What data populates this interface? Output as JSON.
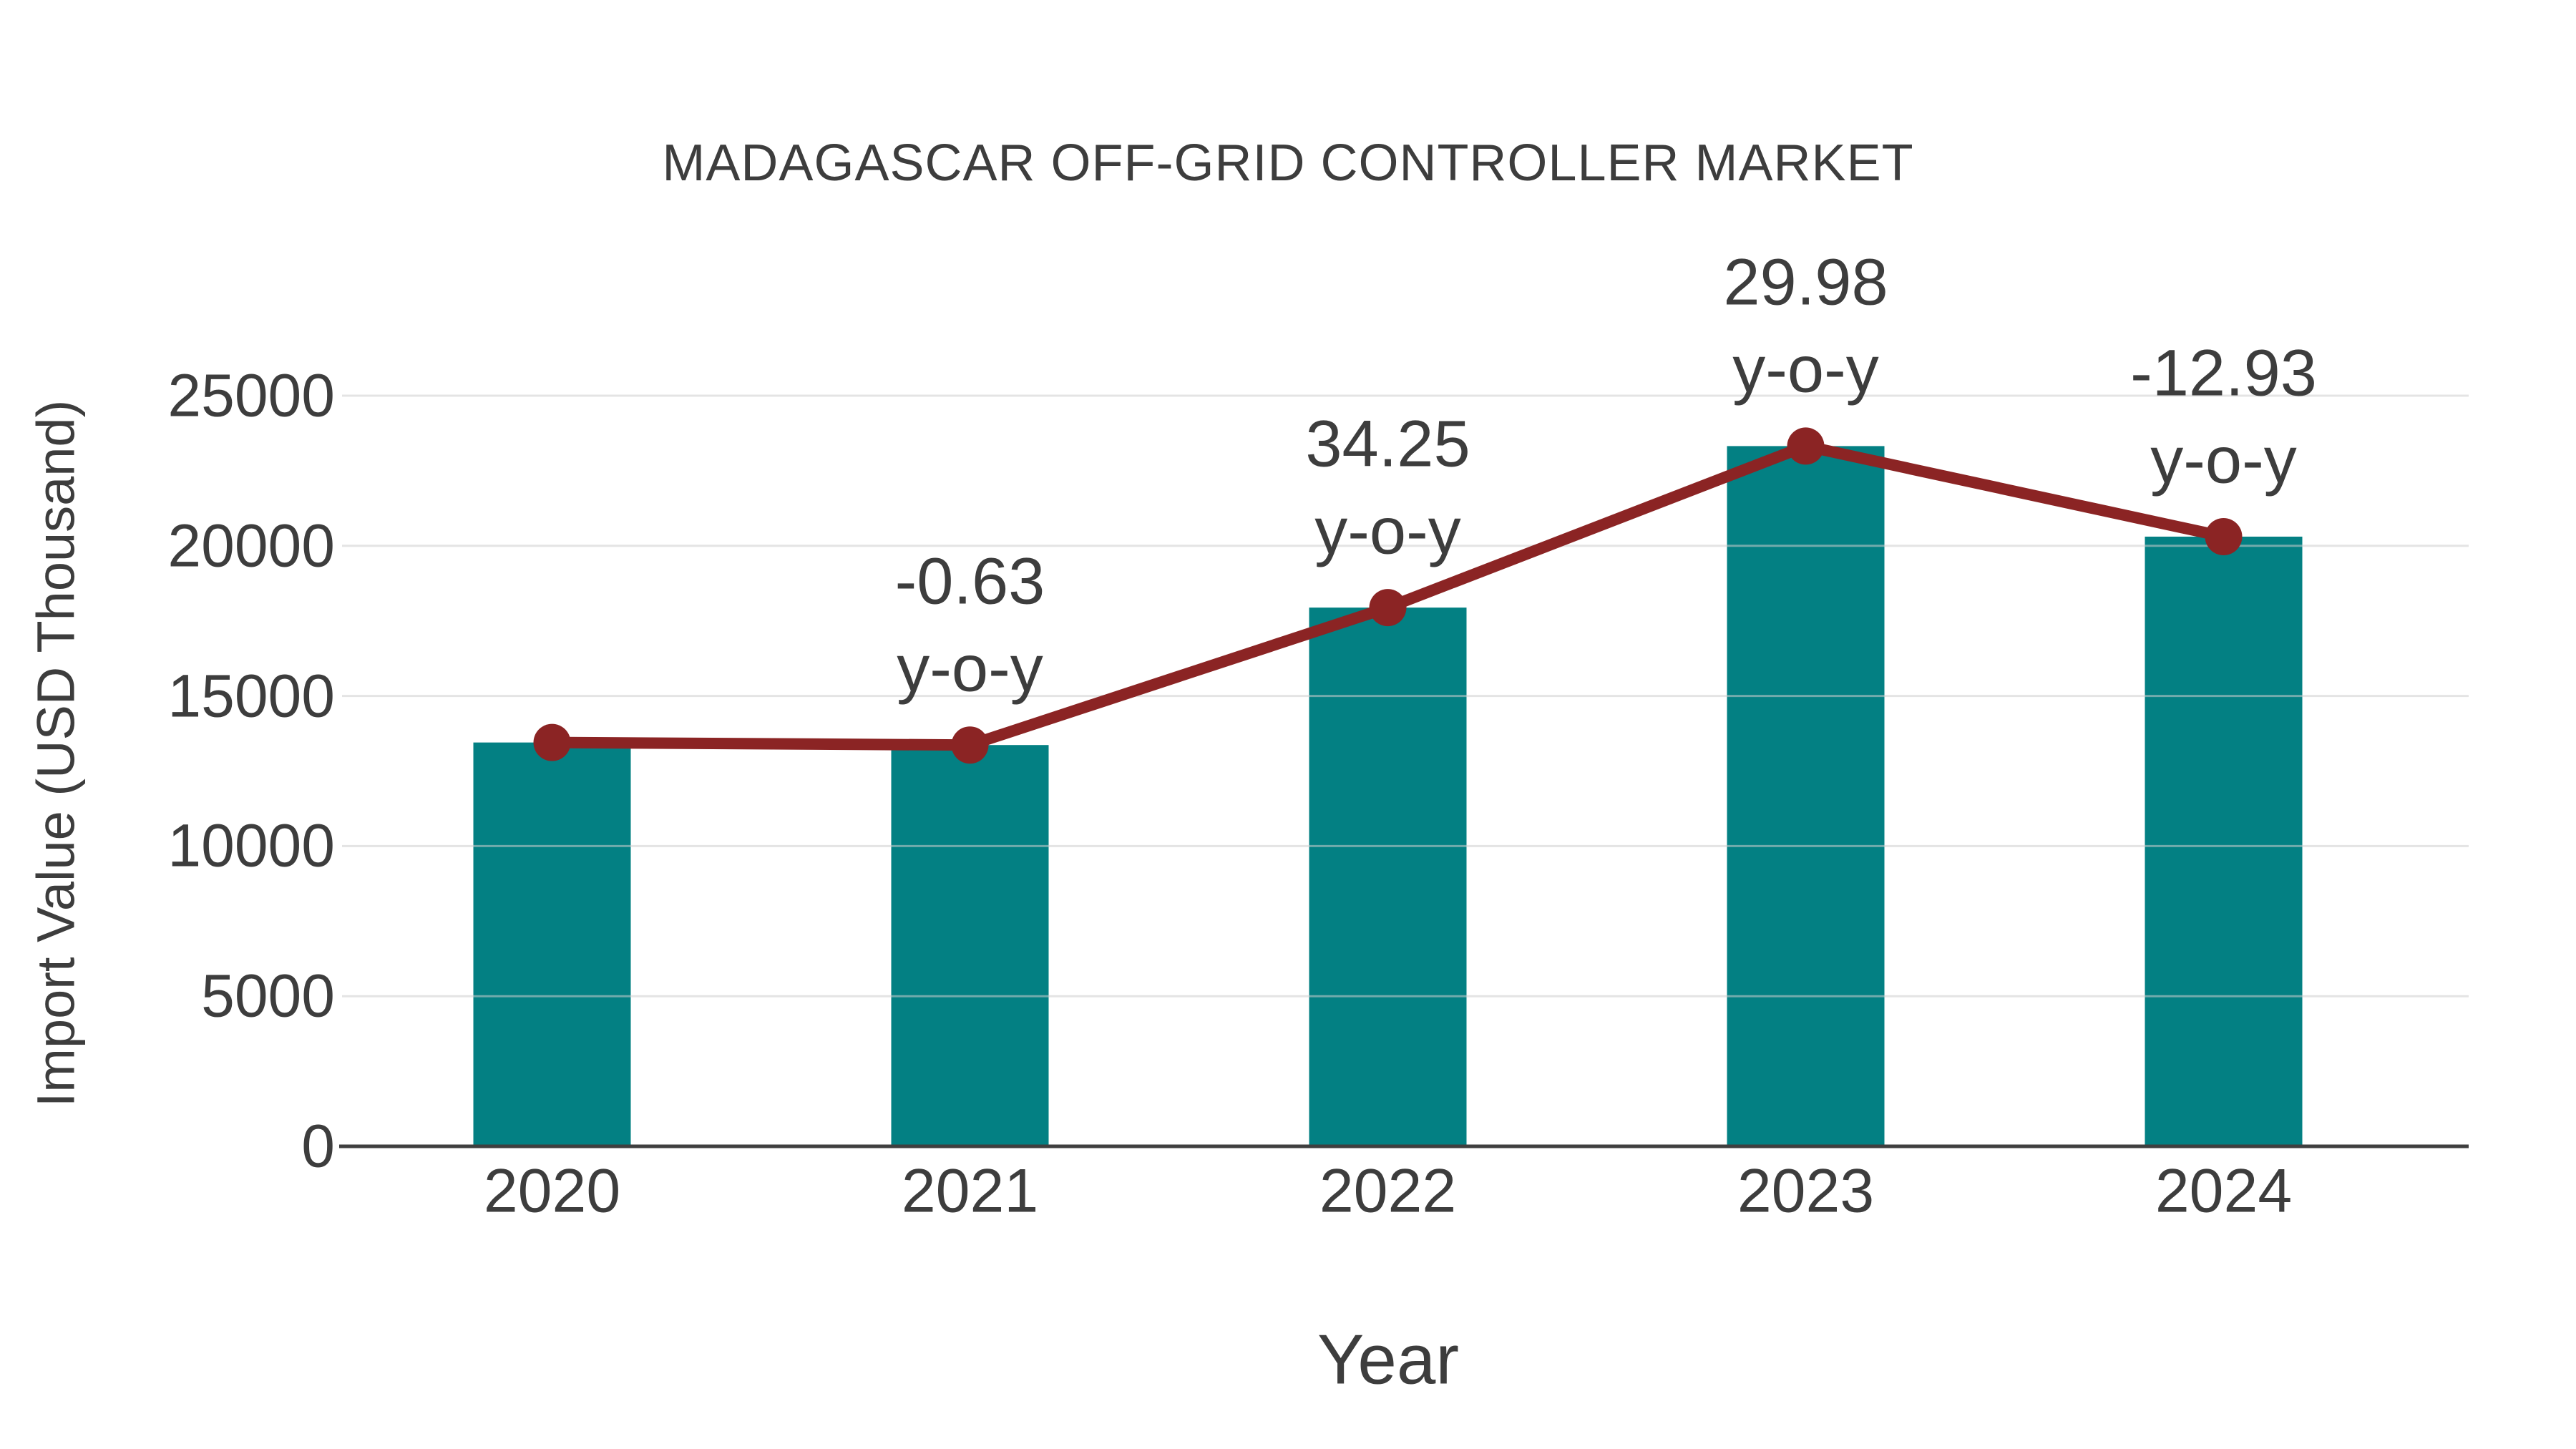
{
  "figure": {
    "title": "MADAGASCAR OFF-GRID CONTROLLER MARKET",
    "x_axis_title": "Year",
    "y_axis_title": "Import Value (USD Thousand)"
  },
  "chart_data": {
    "type": "bar",
    "title": "MADAGASCAR OFF-GRID CONTROLLER MARKET",
    "xlabel": "Year",
    "ylabel": "Import Value (USD Thousand)",
    "categories": [
      "2020",
      "2021",
      "2022",
      "2023",
      "2024"
    ],
    "series": [
      {
        "name": "import-value-bars",
        "type": "bar",
        "color": "#038083",
        "values": [
          13450,
          13365,
          17943,
          23322,
          20306
        ]
      },
      {
        "name": "import-value-trend",
        "type": "line",
        "color": "#8b2424",
        "values": [
          13450,
          13365,
          17943,
          23322,
          20306
        ]
      }
    ],
    "annotations": [
      {
        "category": "2021",
        "value": "-0.63",
        "suffix": "y-o-y"
      },
      {
        "category": "2022",
        "value": "34.25",
        "suffix": "y-o-y"
      },
      {
        "category": "2023",
        "value": "29.98",
        "suffix": "y-o-y"
      },
      {
        "category": "2024",
        "value": "-12.93",
        "suffix": "y-o-y"
      }
    ],
    "y_ticks": [
      0,
      5000,
      10000,
      15000,
      20000,
      25000
    ],
    "ylim": [
      0,
      25100
    ],
    "grid": true,
    "legend_position": "none"
  },
  "colors": {
    "background": "#ffffff",
    "bar": "#038083",
    "line": "#8b2424",
    "marker": "#8b2424",
    "text": "#3d3d3d",
    "gridline": "#e8e8e8",
    "axis_line": "#3f3f3f"
  }
}
